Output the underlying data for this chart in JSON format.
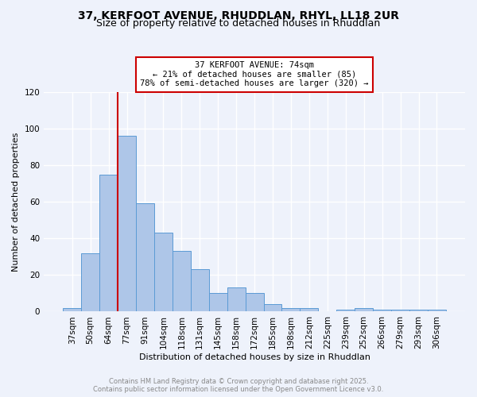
{
  "title_line1": "37, KERFOOT AVENUE, RHUDDLAN, RHYL, LL18 2UR",
  "title_line2": "Size of property relative to detached houses in Rhuddlan",
  "xlabel": "Distribution of detached houses by size in Rhuddlan",
  "ylabel": "Number of detached properties",
  "categories": [
    "37sqm",
    "50sqm",
    "64sqm",
    "77sqm",
    "91sqm",
    "104sqm",
    "118sqm",
    "131sqm",
    "145sqm",
    "158sqm",
    "172sqm",
    "185sqm",
    "198sqm",
    "212sqm",
    "225sqm",
    "239sqm",
    "252sqm",
    "266sqm",
    "279sqm",
    "293sqm",
    "306sqm"
  ],
  "values": [
    2,
    32,
    75,
    96,
    59,
    43,
    33,
    23,
    10,
    13,
    10,
    4,
    2,
    2,
    0,
    1,
    2,
    1,
    1,
    1,
    1
  ],
  "bar_color": "#aec6e8",
  "bar_edge_color": "#5b9bd5",
  "bar_width": 1.0,
  "vline_x": 3.0,
  "vline_color": "#cc0000",
  "annotation_text": "37 KERFOOT AVENUE: 74sqm\n← 21% of detached houses are smaller (85)\n78% of semi-detached houses are larger (320) →",
  "annotation_box_color": "white",
  "annotation_box_edge_color": "#cc0000",
  "ylim": [
    0,
    120
  ],
  "yticks": [
    0,
    20,
    40,
    60,
    80,
    100,
    120
  ],
  "bg_color": "#eef2fb",
  "footer_text": "Contains HM Land Registry data © Crown copyright and database right 2025.\nContains public sector information licensed under the Open Government Licence v3.0.",
  "footer_color": "#888888",
  "grid_color": "white",
  "title_fontsize": 10,
  "subtitle_fontsize": 9,
  "axis_label_fontsize": 8,
  "tick_fontsize": 7.5,
  "annotation_fontsize": 7.5
}
